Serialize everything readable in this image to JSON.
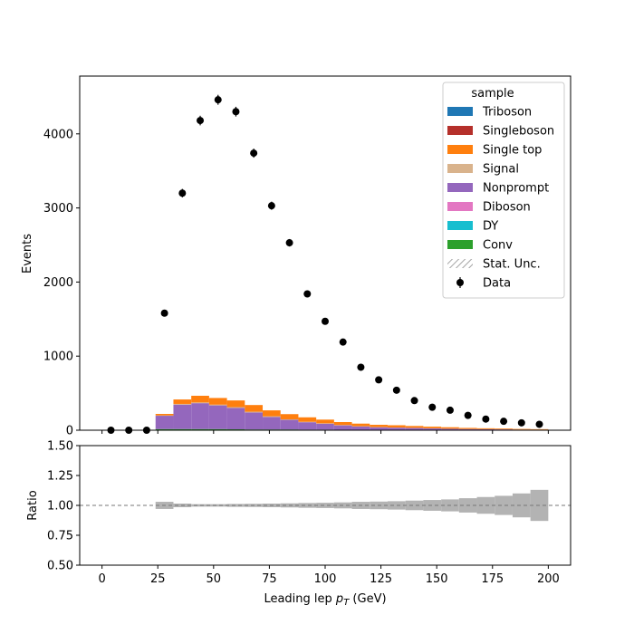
{
  "chart_data": [
    {
      "type": "stacked-histogram",
      "ylabel": "Events",
      "xlim": [
        -10,
        210
      ],
      "ylim": [
        0,
        4780
      ],
      "yticks": [
        0,
        1000,
        2000,
        3000,
        4000
      ],
      "bin_edges": [
        0,
        8,
        16,
        24,
        32,
        40,
        48,
        56,
        64,
        72,
        80,
        88,
        96,
        104,
        112,
        120,
        128,
        136,
        144,
        152,
        160,
        168,
        176,
        184,
        192,
        200
      ],
      "series": [
        {
          "name": "Triboson",
          "color": "#1f77b4",
          "values": [
            0,
            0,
            0,
            0,
            0,
            0,
            0,
            0,
            0,
            0,
            0,
            0,
            0,
            0,
            0,
            0,
            0,
            0,
            0,
            0,
            0,
            0,
            0,
            0,
            0
          ]
        },
        {
          "name": "Singleboson",
          "color": "#b5302b",
          "values": [
            0,
            0,
            0,
            0,
            0,
            0,
            0,
            0,
            0,
            0,
            0,
            0,
            0,
            0,
            0,
            0,
            0,
            0,
            0,
            0,
            0,
            0,
            0,
            0,
            0
          ]
        },
        {
          "name": "Single top",
          "color": "#ff7f0e",
          "values": [
            0,
            0,
            0,
            20,
            60,
            90,
            90,
            90,
            90,
            80,
            70,
            60,
            50,
            40,
            35,
            30,
            30,
            25,
            22,
            20,
            15,
            12,
            10,
            8,
            6
          ]
        },
        {
          "name": "Signal",
          "color": "#d9b38c",
          "values": [
            0,
            0,
            0,
            5,
            10,
            10,
            10,
            10,
            10,
            8,
            7,
            6,
            5,
            4,
            3,
            3,
            2,
            2,
            2,
            1,
            1,
            1,
            1,
            1,
            1
          ]
        },
        {
          "name": "Nonprompt",
          "color": "#9467bd",
          "values": [
            0,
            0,
            0,
            180,
            330,
            350,
            320,
            290,
            230,
            170,
            130,
            100,
            80,
            60,
            45,
            35,
            30,
            25,
            20,
            15,
            12,
            10,
            8,
            6,
            5
          ]
        },
        {
          "name": "Diboson",
          "color": "#e377c2",
          "values": [
            0,
            0,
            0,
            0,
            0,
            0,
            0,
            0,
            0,
            0,
            0,
            0,
            0,
            0,
            0,
            0,
            0,
            0,
            0,
            0,
            0,
            0,
            0,
            0,
            0
          ]
        },
        {
          "name": "DY",
          "color": "#17becf",
          "values": [
            0,
            0,
            0,
            0,
            0,
            0,
            0,
            0,
            0,
            0,
            0,
            0,
            0,
            0,
            0,
            0,
            0,
            0,
            0,
            0,
            0,
            0,
            0,
            0,
            0
          ]
        },
        {
          "name": "Conv",
          "color": "#2ca02c",
          "values": [
            0,
            0,
            0,
            15,
            15,
            15,
            15,
            12,
            10,
            10,
            10,
            8,
            8,
            6,
            6,
            5,
            5,
            5,
            4,
            4,
            3,
            3,
            3,
            2,
            2
          ]
        }
      ],
      "data_points": {
        "name": "Data",
        "x": [
          4,
          12,
          20,
          28,
          36,
          44,
          52,
          60,
          68,
          76,
          84,
          92,
          100,
          108,
          116,
          124,
          132,
          140,
          148,
          156,
          164,
          172,
          180,
          188,
          196
        ],
        "y": [
          0,
          0,
          0,
          1580,
          3200,
          4180,
          4460,
          4300,
          3740,
          3030,
          2530,
          1840,
          1470,
          1190,
          850,
          680,
          540,
          400,
          310,
          270,
          200,
          150,
          120,
          100,
          80
        ]
      },
      "legend": {
        "title": "sample",
        "entries": [
          "Triboson",
          "Singleboson",
          "Single top",
          "Signal",
          "Nonprompt",
          "Diboson",
          "DY",
          "Conv",
          "Stat. Unc.",
          "Data"
        ],
        "position": "upper right"
      }
    },
    {
      "type": "ratio",
      "ylabel": "Ratio",
      "xlabel": "Leading lep $p_T$ (GeV)",
      "xlim": [
        -10,
        210
      ],
      "ylim": [
        0.5,
        1.5
      ],
      "xticks": [
        0,
        25,
        50,
        75,
        100,
        125,
        150,
        175,
        200
      ],
      "yticks": [
        "0.50",
        "0.75",
        "1.00",
        "1.25",
        "1.50"
      ],
      "reference_line": 1.0,
      "uncertainty_band_halfwidth": [
        0,
        0,
        0,
        0.03,
        0.015,
        0.01,
        0.01,
        0.012,
        0.013,
        0.015,
        0.017,
        0.02,
        0.022,
        0.025,
        0.03,
        0.032,
        0.035,
        0.04,
        0.045,
        0.05,
        0.06,
        0.07,
        0.08,
        0.1,
        0.13
      ]
    }
  ]
}
